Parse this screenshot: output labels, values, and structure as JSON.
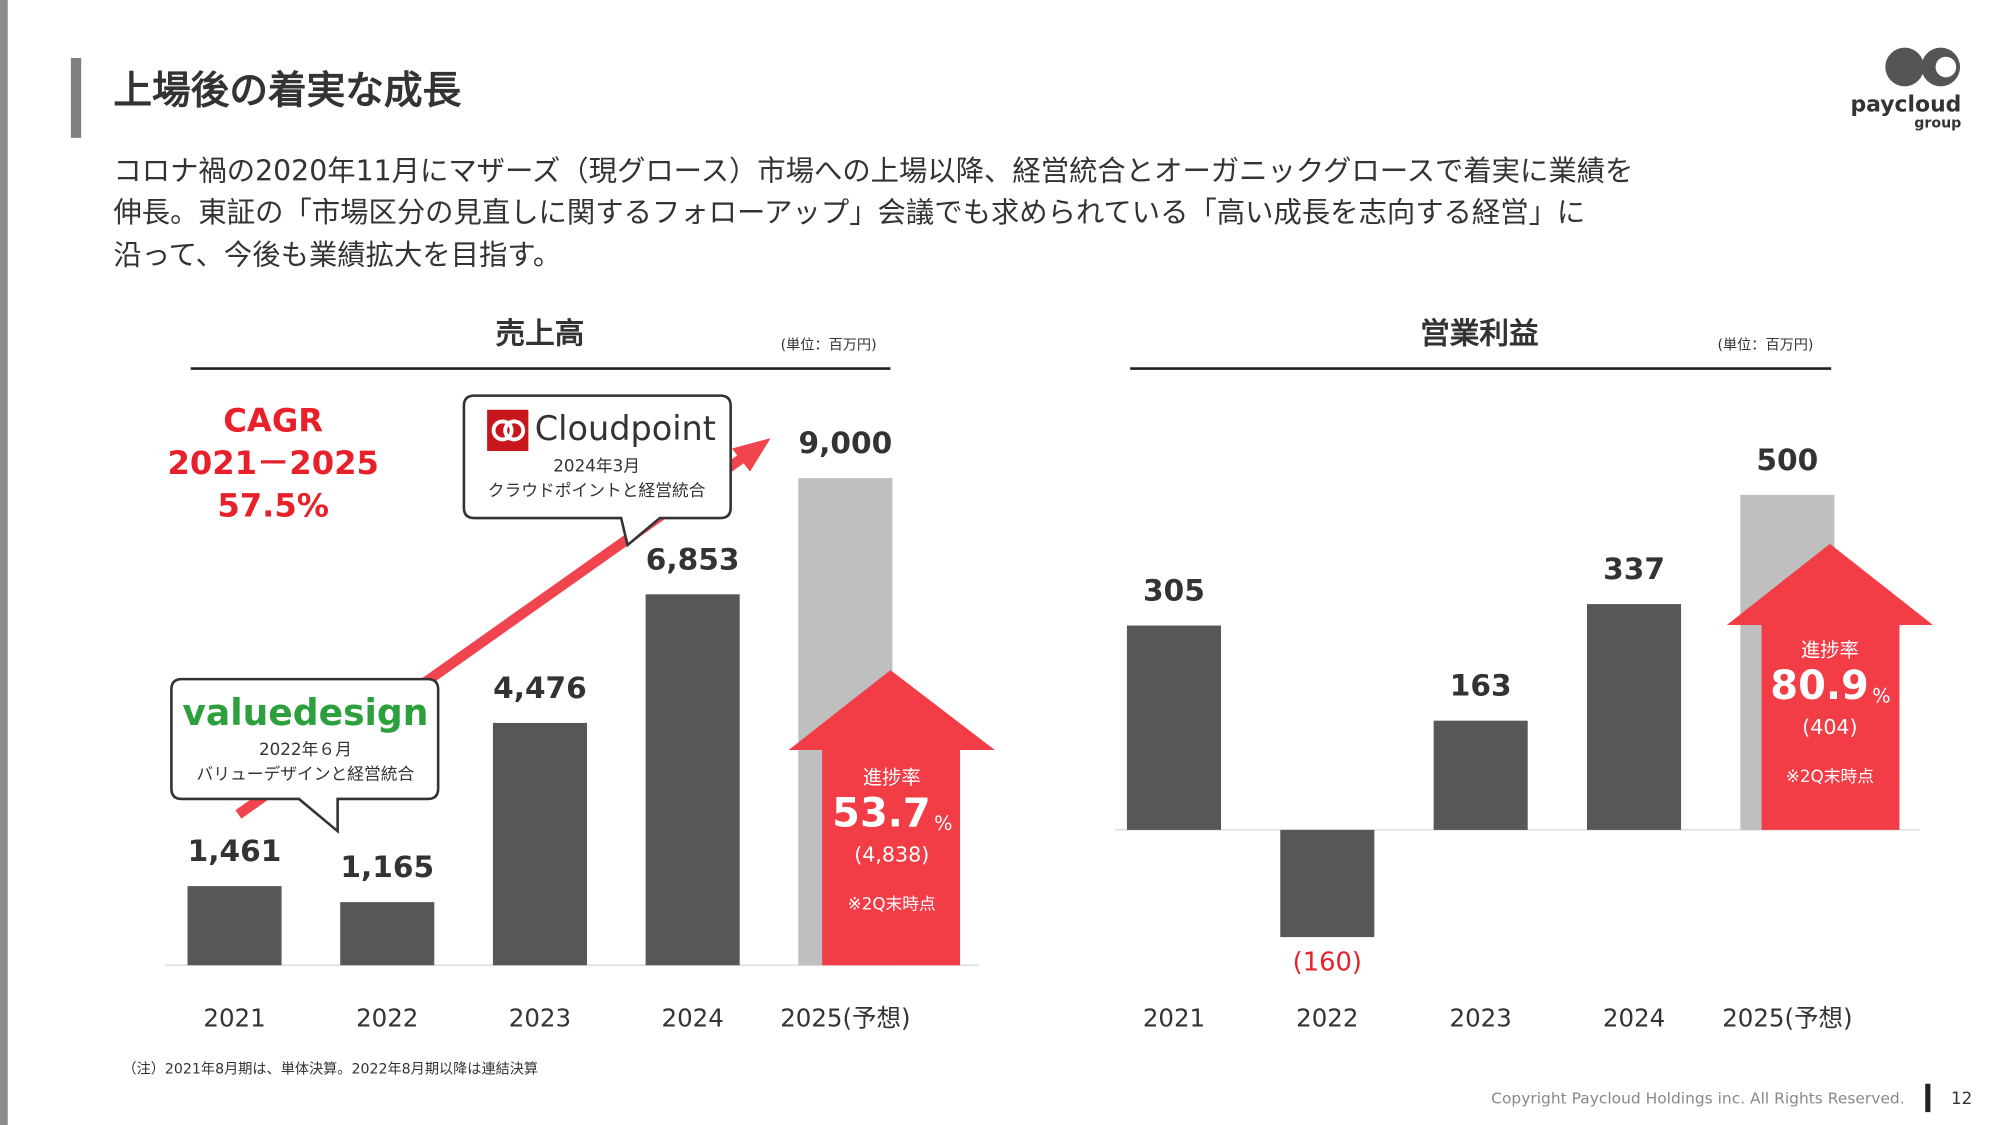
{
  "header": {
    "title": "上場後の着実な成長",
    "body": [
      "コロナ禍の2020年11月にマザーズ（現グロース）市場への上場以降、経営統合とオーガニックグロースで着実に業績を",
      "伸長。東証の「市場区分の見直しに関するフォローアップ」会議でも求められている「高い成長を志向する経営」に",
      "沿って、今後も業績拡大を目指す。"
    ],
    "logo": [
      "paycloud",
      "group"
    ]
  },
  "chart_data": [
    {
      "type": "bar",
      "title": "売上高",
      "unit_note": "(単位：百万円)",
      "categories": [
        "2021",
        "2022",
        "2023",
        "2024",
        "2025(予想)"
      ],
      "values": [
        1461,
        1165,
        4476,
        6853,
        9000
      ],
      "value_labels": [
        "1,461",
        "1,165",
        "4,476",
        "6,853",
        "9,000"
      ],
      "colors": [
        "#575757",
        "#575757",
        "#575757",
        "#575757",
        "#bfbfbf"
      ],
      "ylim": [
        0,
        10000
      ],
      "cagr": [
        "CAGR",
        "2021－2025",
        "57.5%"
      ],
      "callouts": [
        {
          "logo": "valuedesign",
          "date": "2022年６月",
          "text": "バリューデザインと経営統合"
        },
        {
          "logo": "Cloudpoint",
          "date": "2024年3月",
          "text": "クラウドポイントと経営統合"
        }
      ],
      "progress": {
        "label": "進捗率",
        "rate": 53.7,
        "unit": "%",
        "amount": "(4,838)",
        "note": "※2Q末時点"
      }
    },
    {
      "type": "bar",
      "title": "営業利益",
      "unit_note": "(単位：百万円)",
      "categories": [
        "2021",
        "2022",
        "2023",
        "2024",
        "2025(予想)"
      ],
      "values": [
        305,
        -160,
        163,
        337,
        500
      ],
      "value_labels": [
        "305",
        "(160)",
        "163",
        "337",
        "500"
      ],
      "colors": [
        "#575757",
        "#575757",
        "#575757",
        "#575757",
        "#bfbfbf"
      ],
      "ylim": [
        -200,
        600
      ],
      "progress": {
        "label": "進捗率",
        "rate": 80.9,
        "unit": "%",
        "amount": "(404)",
        "note": "※2Q末時点"
      }
    }
  ],
  "footer": {
    "note": "（注）2021年8月期は、単体決算。2022年8月期以降は連結決算",
    "copyright": "Copyright Paycloud Holdings inc. All Rights Reserved.",
    "page": 12
  }
}
